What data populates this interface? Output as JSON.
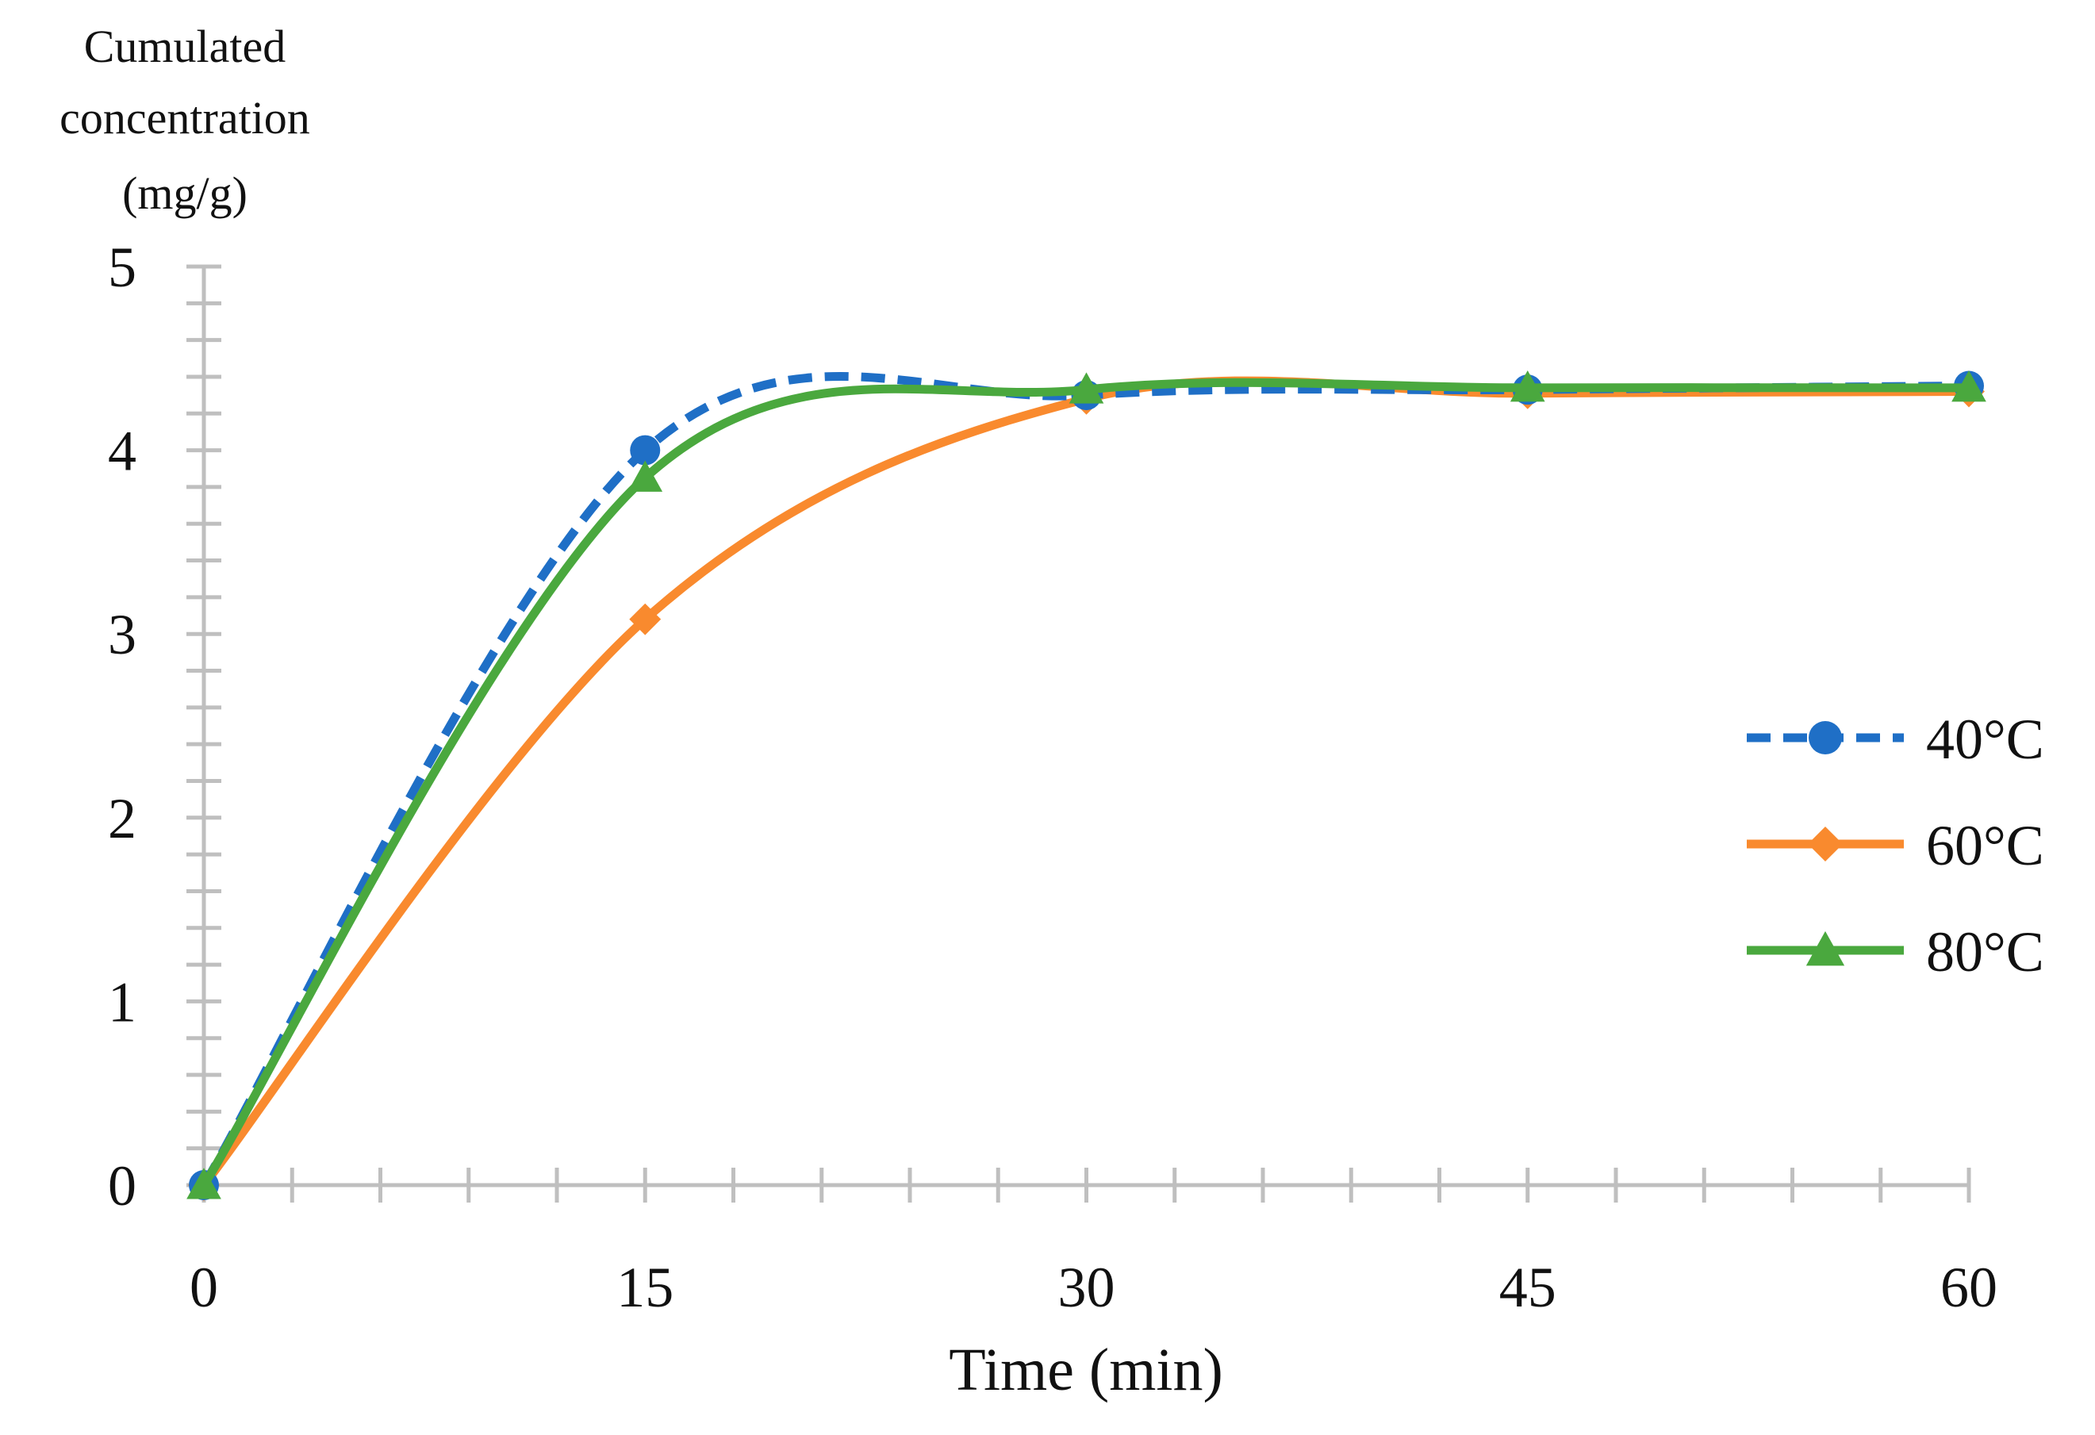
{
  "chart_data": {
    "type": "line",
    "smooth": true,
    "title": "",
    "xlabel": "Time (min)",
    "ylabel_lines": [
      "Cumulated",
      "concentration",
      "(mg/g)"
    ],
    "xlim": [
      0,
      60
    ],
    "ylim": [
      0,
      5
    ],
    "x_ticks": [
      0,
      15,
      30,
      45,
      60
    ],
    "x_tick_labels": [
      "0",
      "15",
      "30",
      "45",
      "60"
    ],
    "y_ticks": [
      0,
      1,
      2,
      3,
      4,
      5
    ],
    "y_tick_labels": [
      "0",
      "1",
      "2",
      "3",
      "4",
      "5"
    ],
    "x_minor_step": 3,
    "y_minor_step": 0.2,
    "grid": false,
    "legend_position": "right",
    "x": [
      0,
      15,
      30,
      45,
      60
    ],
    "series": [
      {
        "name": "40°C",
        "color": "#1f6fc6",
        "marker": "circle",
        "dashed": true,
        "values": [
          0,
          4.0,
          4.3,
          4.33,
          4.35
        ]
      },
      {
        "name": "60°C",
        "color": "#f98a2e",
        "marker": "diamond",
        "dashed": false,
        "values": [
          0,
          3.08,
          4.28,
          4.31,
          4.32
        ]
      },
      {
        "name": "80°C",
        "color": "#4aa83e",
        "marker": "triangle",
        "dashed": false,
        "values": [
          0,
          3.85,
          4.33,
          4.34,
          4.34
        ]
      }
    ]
  }
}
